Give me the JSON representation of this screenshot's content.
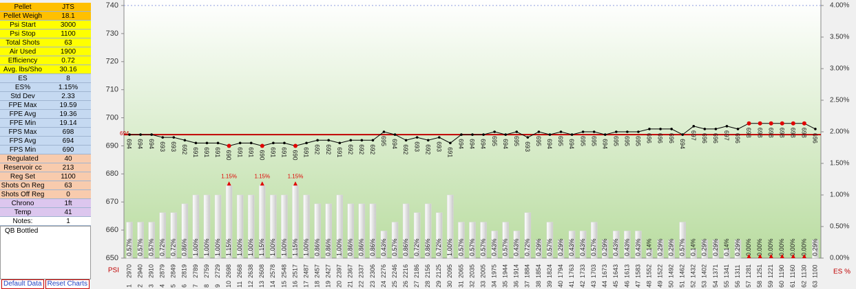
{
  "panel": {
    "sections": [
      {
        "color": "#ffc000",
        "rows": [
          [
            "Pellet",
            "JTS"
          ],
          [
            "Pellet Weigh",
            "18.1"
          ]
        ]
      },
      {
        "color": "#ffff00",
        "rows": [
          [
            "Psi Start",
            "3000"
          ],
          [
            "Psi Stop",
            "1100"
          ],
          [
            "Total Shots",
            "63"
          ],
          [
            "Air Used",
            "1900"
          ],
          [
            "Efficiency",
            "0.72"
          ],
          [
            "Avg. lbs/Sho",
            "30.16"
          ]
        ]
      },
      {
        "color": "#c5d9f1",
        "rows": [
          [
            "ES",
            "8"
          ],
          [
            "ES%",
            "1.15%"
          ],
          [
            "Std Dev",
            "2.33"
          ],
          [
            "FPE Max",
            "19.59"
          ],
          [
            "FPE Avg",
            "19.36"
          ],
          [
            "FPE Min",
            "19.14"
          ],
          [
            "FPS Max",
            "698"
          ],
          [
            "FPS Avg",
            "694"
          ],
          [
            "FPS Min",
            "690"
          ]
        ]
      },
      {
        "color": "#f8cbad",
        "rows": [
          [
            "Regulated",
            "40"
          ],
          [
            "Reservoir cc",
            "213"
          ],
          [
            "Reg Set",
            "1100"
          ],
          [
            "Shots On Reg",
            "63"
          ],
          [
            "Shots Off Reg",
            "0"
          ]
        ]
      },
      {
        "color": "#dcc6ee",
        "rows": [
          [
            "Chrono",
            "1ft"
          ],
          [
            "Temp",
            "41"
          ]
        ]
      },
      {
        "color": "#ffffff",
        "rows": [
          [
            "Notes:",
            "1"
          ]
        ]
      }
    ],
    "note": "QB Bottled",
    "buttons": [
      "Default Data",
      "Reset Charts"
    ]
  },
  "chart_data": {
    "type": "combo",
    "categories": [
      "1",
      "2",
      "3",
      "4",
      "5",
      "6",
      "7",
      "8",
      "9",
      "10",
      "11",
      "12",
      "13",
      "14",
      "15",
      "16",
      "17",
      "18",
      "19",
      "20",
      "21",
      "22",
      "23",
      "24",
      "25",
      "26",
      "27",
      "28",
      "29",
      "30",
      "31",
      "32",
      "33",
      "34",
      "35",
      "36",
      "37",
      "38",
      "39",
      "40",
      "41",
      "42",
      "43",
      "44",
      "45",
      "46",
      "47",
      "48",
      "49",
      "50",
      "51",
      "52",
      "53",
      "54",
      "55",
      "56",
      "57",
      "58",
      "59",
      "60",
      "61",
      "62",
      "63"
    ],
    "psi": [
      2970,
      2940,
      2910,
      2879,
      2849,
      2819,
      2789,
      2759,
      2729,
      2698,
      2668,
      2638,
      2608,
      2578,
      2548,
      2517,
      2487,
      2457,
      2427,
      2397,
      2367,
      2337,
      2306,
      2276,
      2246,
      2216,
      2186,
      2156,
      2125,
      2095,
      2065,
      2035,
      2005,
      1975,
      1944,
      1914,
      1884,
      1854,
      1824,
      1794,
      1763,
      1733,
      1703,
      1673,
      1643,
      1613,
      1583,
      1552,
      1522,
      1492,
      1462,
      1432,
      1402,
      1371,
      1341,
      1311,
      1281,
      1251,
      1221,
      1190,
      1160,
      1130,
      1100
    ],
    "series": [
      {
        "type": "bar",
        "axis": "y2",
        "color": "#d9d9d9",
        "values": [
          0.57,
          0.57,
          0.57,
          0.72,
          0.72,
          0.86,
          1.0,
          1.0,
          1.0,
          1.15,
          1.0,
          1.0,
          1.15,
          1.0,
          1.0,
          1.15,
          1.0,
          0.86,
          0.86,
          1.0,
          0.86,
          0.86,
          0.86,
          0.43,
          0.57,
          0.86,
          0.72,
          0.86,
          0.72,
          1.0,
          0.57,
          0.57,
          0.57,
          0.43,
          0.57,
          0.43,
          0.72,
          0.29,
          0.57,
          0.29,
          0.43,
          0.43,
          0.57,
          0.29,
          0.43,
          0.43,
          0.43,
          0.14,
          0.29,
          0.29,
          0.57,
          0.14,
          0.29,
          0.29,
          0.14,
          0.29,
          0.0,
          0.0,
          0.0,
          0.0,
          0.0,
          0.0,
          0.29
        ],
        "value_labels": [
          "0.57%",
          "0.57%",
          "0.57%",
          "0.72%",
          "0.72%",
          "0.86%",
          "1.00%",
          "1.00%",
          "1.00%",
          "1.15%",
          "1.00%",
          "1.00%",
          "1.15%",
          "1.00%",
          "1.00%",
          "1.15%",
          "1.00%",
          "0.86%",
          "0.86%",
          "1.00%",
          "0.86%",
          "0.86%",
          "0.86%",
          "0.43%",
          "0.57%",
          "0.86%",
          "0.72%",
          "0.86%",
          "0.72%",
          "1.00%",
          "0.57%",
          "0.57%",
          "0.57%",
          "0.43%",
          "0.57%",
          "0.43%",
          "0.72%",
          "0.29%",
          "0.57%",
          "0.29%",
          "0.43%",
          "0.43%",
          "0.57%",
          "0.29%",
          "0.43%",
          "0.43%",
          "0.43%",
          "0.14%",
          "0.29%",
          "0.29%",
          "0.57%",
          "0.14%",
          "0.29%",
          "0.29%",
          "0.14%",
          "0.29%",
          "0.00%",
          "0.00%",
          "0.00%",
          "0.00%",
          "0.00%",
          "0.00%",
          "0.29%"
        ]
      },
      {
        "type": "line",
        "axis": "y",
        "color": "#000000",
        "highlight_color": "#e00000",
        "values": [
          694,
          694,
          694,
          693,
          693,
          692,
          691,
          691,
          691,
          690,
          691,
          691,
          690,
          691,
          691,
          690,
          691,
          692,
          692,
          691,
          692,
          692,
          692,
          695,
          694,
          692,
          693,
          692,
          693,
          691,
          694,
          694,
          694,
          695,
          694,
          695,
          693,
          695,
          694,
          695,
          694,
          695,
          695,
          694,
          695,
          695,
          695,
          696,
          696,
          696,
          694,
          697,
          696,
          696,
          697,
          696,
          698,
          698,
          698,
          698,
          698,
          698,
          696
        ]
      }
    ],
    "annotations": [
      {
        "category": "10",
        "text": "1.15%"
      },
      {
        "category": "13",
        "text": "1.15%"
      },
      {
        "category": "16",
        "text": "1.15%"
      }
    ],
    "reference_line": {
      "value": 694,
      "label": "694",
      "color": "#c00000"
    },
    "x_label": "PSI",
    "y2_label": "ES %",
    "ylim": [
      650,
      740
    ],
    "yticks": [
      650,
      660,
      670,
      680,
      690,
      700,
      710,
      720,
      730,
      740
    ],
    "y2lim": [
      0,
      4
    ],
    "y2ticks": [
      {
        "value": 0,
        "label": "0.00%"
      },
      {
        "value": 0.5,
        "label": "0.50%"
      },
      {
        "value": 1,
        "label": "1.00%"
      },
      {
        "value": 1.5,
        "label": "1.50%"
      },
      {
        "value": 2,
        "label": "2.00%"
      },
      {
        "value": 2.5,
        "label": "2.50%"
      },
      {
        "value": 3,
        "label": "3.00%"
      },
      {
        "value": 3.5,
        "label": "3.50%"
      },
      {
        "value": 4,
        "label": "4.00%"
      }
    ]
  }
}
